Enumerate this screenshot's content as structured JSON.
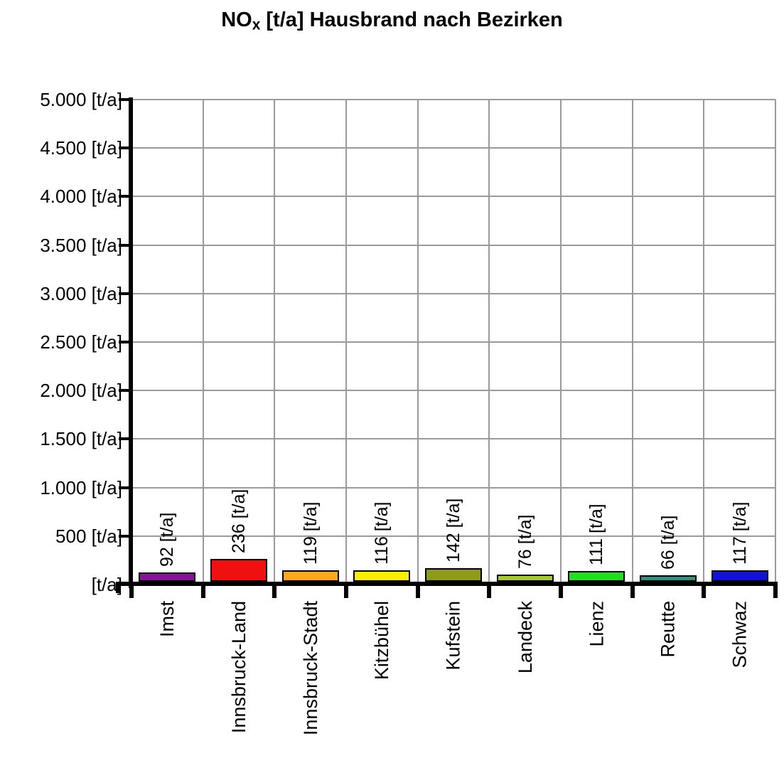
{
  "title": {
    "prefix": "NO",
    "subscript": "x",
    "rest": " [t/a] Hausbrand nach Bezirken"
  },
  "chart_data": {
    "type": "bar",
    "title": "NOx [t/a] Hausbrand nach Bezirken",
    "xlabel": "",
    "ylabel": "[t/a]",
    "ylim": [
      0,
      5000
    ],
    "grid": true,
    "legend": "none",
    "categories": [
      "Imst",
      "Innsbruck-Land",
      "Innsbruck-Stadt",
      "Kitzbühel",
      "Kufstein",
      "Landeck",
      "Lienz",
      "Reutte",
      "Schwaz"
    ],
    "values": [
      92,
      236,
      119,
      116,
      142,
      76,
      111,
      66,
      117
    ],
    "value_labels": [
      "92 [t/a]",
      "236 [t/a]",
      "119 [t/a]",
      "116 [t/a]",
      "142 [t/a]",
      "76 [t/a]",
      "111 [t/a]",
      "66 [t/a]",
      "117 [t/a]"
    ],
    "bar_colors": [
      "#8A119C",
      "#F01010",
      "#FFA818",
      "#FAEE00",
      "#8E9A1A",
      "#A2CC2E",
      "#22DD22",
      "#2F9180",
      "#1111D8"
    ],
    "yticks": [
      0,
      500,
      1000,
      1500,
      2000,
      2500,
      3000,
      3500,
      4000,
      4500,
      5000
    ],
    "ytick_labels": [
      "[t/a]",
      "500 [t/a]",
      "1.000 [t/a]",
      "1.500 [t/a]",
      "2.000 [t/a]",
      "2.500 [t/a]",
      "3.000 [t/a]",
      "3.500 [t/a]",
      "4.000 [t/a]",
      "4.500 [t/a]",
      "5.000 [t/a]"
    ],
    "colors": {
      "background": "#FFFFFF",
      "grid": "#9A9A9A",
      "axis": "#000000",
      "text": "#000000"
    }
  }
}
